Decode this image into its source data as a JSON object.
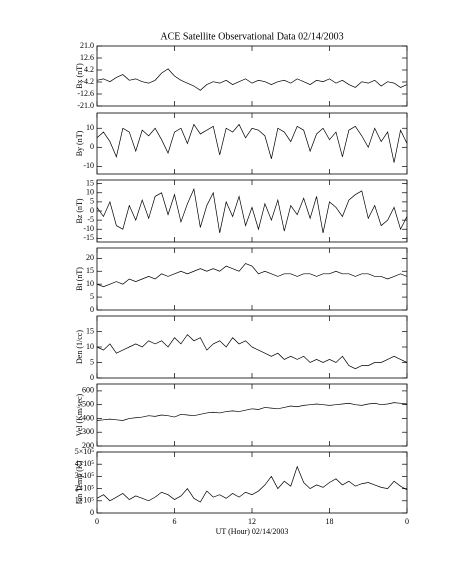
{
  "chart_data": [
    {
      "type": "line",
      "title": "ACE Satellite Observational Data   02/14/2003",
      "ylabel": "Bx (nT)",
      "x": [
        0,
        0.5,
        1,
        1.5,
        2,
        2.5,
        3,
        3.5,
        4,
        4.5,
        5,
        5.5,
        6,
        6.5,
        7,
        7.5,
        8,
        8.5,
        9,
        9.5,
        10,
        10.5,
        11,
        11.5,
        12,
        12.5,
        13,
        13.5,
        14,
        14.5,
        15,
        15.5,
        16,
        16.5,
        17,
        17.5,
        18,
        18.5,
        19,
        19.5,
        20,
        20.5,
        21,
        21.5,
        22,
        22.5,
        23,
        23.5,
        24
      ],
      "values": [
        -3,
        -2,
        -4,
        -1,
        1,
        -3,
        -2,
        -4,
        -5,
        -3,
        2,
        5,
        0,
        -3,
        -5,
        -7,
        -10,
        -6,
        -4,
        -5,
        -3,
        -6,
        -4,
        -2,
        -5,
        -3,
        -4,
        -6,
        -4,
        -3,
        -5,
        -2,
        -4,
        -6,
        -3,
        -4,
        -2,
        -5,
        -3,
        -6,
        -8,
        -4,
        -5,
        -3,
        -7,
        -4,
        -5,
        -8,
        -6
      ],
      "xlim": [
        0,
        24
      ],
      "ylim": [
        -21,
        21
      ],
      "yticks": [
        {
          "value": 21,
          "label": "21.0"
        },
        12.6,
        4.2,
        -4.2,
        -12.6,
        {
          "value": -21,
          "label": "-21.0"
        }
      ],
      "color": "#000000"
    },
    {
      "type": "line",
      "ylabel": "By (nT)",
      "x": [
        0,
        0.5,
        1,
        1.5,
        2,
        2.5,
        3,
        3.5,
        4,
        4.5,
        5,
        5.5,
        6,
        6.5,
        7,
        7.5,
        8,
        8.5,
        9,
        9.5,
        10,
        10.5,
        11,
        11.5,
        12,
        12.5,
        13,
        13.5,
        14,
        14.5,
        15,
        15.5,
        16,
        16.5,
        17,
        17.5,
        18,
        18.5,
        19,
        19.5,
        20,
        20.5,
        21,
        21.5,
        22,
        22.5,
        23,
        23.5,
        24
      ],
      "values": [
        5,
        8,
        3,
        -5,
        10,
        8,
        -2,
        9,
        6,
        10,
        4,
        -3,
        8,
        10,
        2,
        12,
        7,
        9,
        11,
        -4,
        10,
        8,
        12,
        5,
        10,
        9,
        6,
        -6,
        10,
        8,
        3,
        11,
        9,
        -2,
        7,
        10,
        4,
        8,
        -5,
        9,
        11,
        6,
        0,
        10,
        3,
        8,
        -8,
        9,
        2
      ],
      "xlim": [
        0,
        24
      ],
      "ylim": [
        -14,
        18
      ],
      "yticks": [
        10,
        0,
        -10
      ],
      "color": "#000000"
    },
    {
      "type": "line",
      "ylabel": "Bz (nT)",
      "x": [
        0,
        0.5,
        1,
        1.5,
        2,
        2.5,
        3,
        3.5,
        4,
        4.5,
        5,
        5.5,
        6,
        6.5,
        7,
        7.5,
        8,
        8.5,
        9,
        9.5,
        10,
        10.5,
        11,
        11.5,
        12,
        12.5,
        13,
        13.5,
        14,
        14.5,
        15,
        15.5,
        16,
        16.5,
        17,
        17.5,
        18,
        18.5,
        19,
        19.5,
        20,
        20.5,
        21,
        21.5,
        22,
        22.5,
        23,
        23.5,
        24
      ],
      "values": [
        2,
        -3,
        5,
        -8,
        -10,
        3,
        -5,
        6,
        -4,
        8,
        10,
        -2,
        9,
        -6,
        4,
        12,
        -9,
        3,
        10,
        -12,
        5,
        -3,
        8,
        -8,
        2,
        -10,
        4,
        -5,
        6,
        -11,
        3,
        -2,
        7,
        -4,
        8,
        -12,
        5,
        2,
        -3,
        6,
        9,
        11,
        -4,
        3,
        -8,
        -5,
        2,
        -10,
        -3
      ],
      "xlim": [
        0,
        24
      ],
      "ylim": [
        -17,
        17
      ],
      "yticks": [
        15,
        10,
        5,
        0,
        -5,
        -10,
        -15
      ],
      "color": "#000000"
    },
    {
      "type": "line",
      "ylabel": "Bt (nT)",
      "x": [
        0,
        0.5,
        1,
        1.5,
        2,
        2.5,
        3,
        3.5,
        4,
        4.5,
        5,
        5.5,
        6,
        6.5,
        7,
        7.5,
        8,
        8.5,
        9,
        9.5,
        10,
        10.5,
        11,
        11.5,
        12,
        12.5,
        13,
        13.5,
        14,
        14.5,
        15,
        15.5,
        16,
        16.5,
        17,
        17.5,
        18,
        18.5,
        19,
        19.5,
        20,
        20.5,
        21,
        21.5,
        22,
        22.5,
        23,
        23.5,
        24
      ],
      "values": [
        10,
        9,
        10,
        11,
        10,
        12,
        11,
        12,
        13,
        12,
        14,
        13,
        14,
        15,
        14,
        15,
        16,
        15,
        16,
        15,
        17,
        16,
        15,
        18,
        17,
        14,
        15,
        14,
        13,
        14,
        14,
        13,
        14,
        14,
        13,
        14,
        14,
        15,
        14,
        14,
        13,
        14,
        14,
        13,
        13,
        12,
        13,
        14,
        13
      ],
      "xlim": [
        0,
        24
      ],
      "ylim": [
        0,
        24
      ],
      "yticks": [
        20,
        15,
        10,
        5,
        0
      ],
      "color": "#000000"
    },
    {
      "type": "line",
      "ylabel": "Den (1/cc)",
      "x": [
        0,
        0.5,
        1,
        1.5,
        2,
        2.5,
        3,
        3.5,
        4,
        4.5,
        5,
        5.5,
        6,
        6.5,
        7,
        7.5,
        8,
        8.5,
        9,
        9.5,
        10,
        10.5,
        11,
        11.5,
        12,
        12.5,
        13,
        13.5,
        14,
        14.5,
        15,
        15.5,
        16,
        16.5,
        17,
        17.5,
        18,
        18.5,
        19,
        19.5,
        20,
        20.5,
        21,
        21.5,
        22,
        22.5,
        23,
        23.5,
        24
      ],
      "values": [
        10,
        9,
        11,
        8,
        9,
        10,
        11,
        10,
        12,
        11,
        12,
        10,
        13,
        11,
        14,
        12,
        13,
        9,
        11,
        12,
        10,
        13,
        11,
        12,
        10,
        9,
        8,
        7,
        8,
        6,
        7,
        6,
        7,
        5,
        6,
        5,
        6,
        5,
        7,
        4,
        3,
        4,
        4,
        5,
        5,
        6,
        7,
        6,
        5
      ],
      "xlim": [
        0,
        24
      ],
      "ylim": [
        0,
        20
      ],
      "yticks": [
        15,
        10,
        5,
        0
      ],
      "color": "#000000"
    },
    {
      "type": "line",
      "ylabel": "Vel (Km/sec)",
      "x": [
        0,
        0.5,
        1,
        1.5,
        2,
        2.5,
        3,
        3.5,
        4,
        4.5,
        5,
        5.5,
        6,
        6.5,
        7,
        7.5,
        8,
        8.5,
        9,
        9.5,
        10,
        10.5,
        11,
        11.5,
        12,
        12.5,
        13,
        13.5,
        14,
        14.5,
        15,
        15.5,
        16,
        16.5,
        17,
        17.5,
        18,
        18.5,
        19,
        19.5,
        20,
        20.5,
        21,
        21.5,
        22,
        22.5,
        23,
        23.5,
        24
      ],
      "values": [
        385,
        390,
        395,
        390,
        385,
        400,
        405,
        410,
        420,
        415,
        425,
        420,
        410,
        430,
        425,
        420,
        430,
        440,
        445,
        440,
        450,
        455,
        450,
        460,
        470,
        465,
        480,
        475,
        470,
        480,
        490,
        485,
        495,
        500,
        505,
        500,
        495,
        500,
        505,
        510,
        500,
        495,
        505,
        510,
        500,
        505,
        515,
        510,
        505
      ],
      "xlim": [
        0,
        24
      ],
      "ylim": [
        200,
        650
      ],
      "yticks": [
        600,
        500,
        400,
        300,
        200
      ],
      "color": "#000000"
    },
    {
      "type": "line",
      "ylabel": "Ion Temp (K)",
      "xlabel": "UT (Hour)   02/14/2003",
      "x": [
        0,
        0.5,
        1,
        1.5,
        2,
        2.5,
        3,
        3.5,
        4,
        4.5,
        5,
        5.5,
        6,
        6.5,
        7,
        7.5,
        8,
        8.5,
        9,
        9.5,
        10,
        10.5,
        11,
        11.5,
        12,
        12.5,
        13,
        13.5,
        14,
        14.5,
        15,
        15.5,
        16,
        16.5,
        17,
        17.5,
        18,
        18.5,
        19,
        19.5,
        20,
        20.5,
        21,
        21.5,
        22,
        22.5,
        23,
        23.5,
        24
      ],
      "values": [
        120000,
        150000,
        100000,
        130000,
        160000,
        110000,
        140000,
        120000,
        100000,
        130000,
        170000,
        150000,
        110000,
        140000,
        200000,
        120000,
        90000,
        180000,
        130000,
        150000,
        120000,
        160000,
        130000,
        170000,
        150000,
        180000,
        230000,
        300000,
        200000,
        260000,
        220000,
        380000,
        250000,
        200000,
        230000,
        210000,
        250000,
        280000,
        230000,
        260000,
        220000,
        240000,
        250000,
        230000,
        210000,
        200000,
        260000,
        220000,
        190000
      ],
      "xlim": [
        0,
        24
      ],
      "ylim": [
        0,
        500000
      ],
      "yticks": [
        {
          "value": 500000,
          "label": "5×10⁵"
        },
        {
          "value": 400000,
          "label": "4×10⁵"
        },
        {
          "value": 300000,
          "label": "3×10⁵"
        },
        {
          "value": 200000,
          "label": "2×10⁵"
        },
        {
          "value": 100000,
          "label": "1×10⁵"
        },
        0
      ],
      "xticks": [
        0,
        6,
        12,
        18,
        {
          "value": 24,
          "label": "0"
        }
      ],
      "color": "#000000"
    }
  ]
}
